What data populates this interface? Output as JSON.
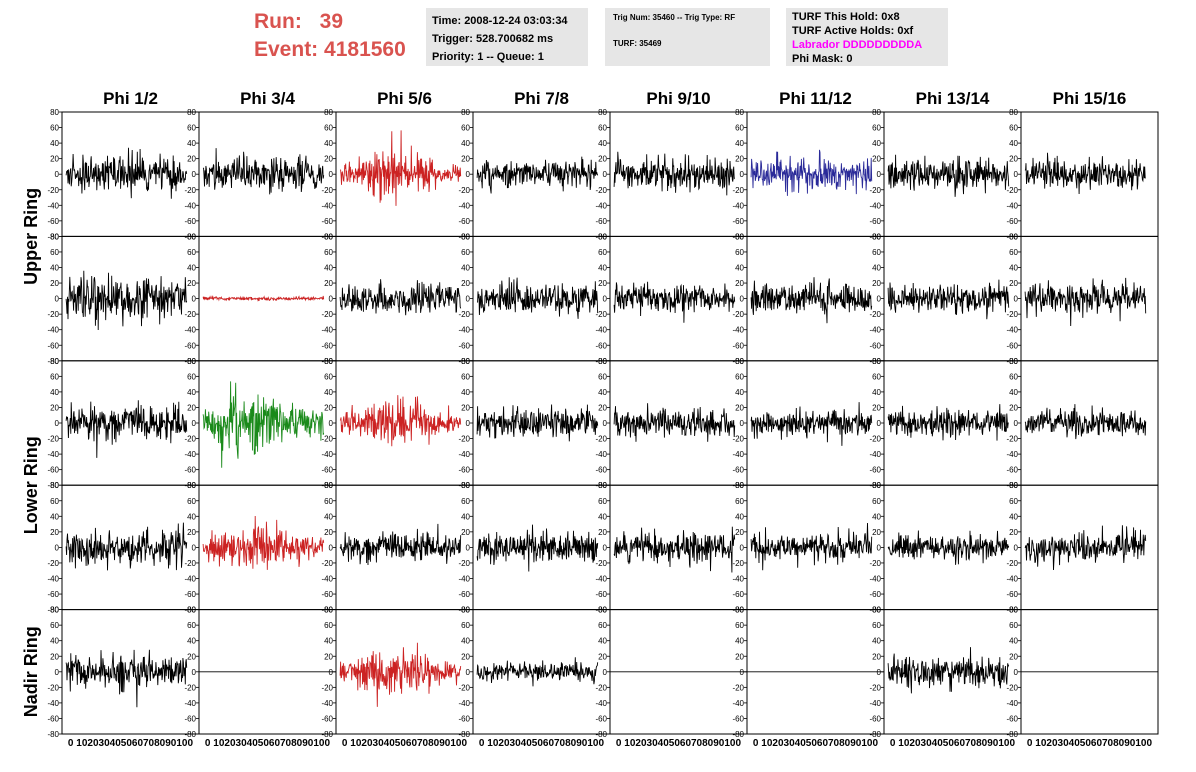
{
  "header": {
    "run_label": "Run:",
    "run_value": "39",
    "event_label": "Event:",
    "event_value": "4181560",
    "time_line": "Time: 2008-12-24 03:03:34",
    "trigger_line": "Trigger: 528.700682 ms",
    "priority_line": "Priority: 1 -- Queue: 1",
    "trig_num_line": "Trig Num: 35460 -- Trig Type: RF",
    "turf_line": "TURF: 35469",
    "turf_hold_line": "TURF This Hold: 0x8",
    "turf_active_line": "TURF Active Holds: 0xf",
    "labrador_line": "Labrador DDDDDDDDDA",
    "phi_mask_line": "Phi Mask: 0"
  },
  "colors": {
    "run_text": "#d9534f",
    "labrador_text": "#ff00ff",
    "info_bg": "#e6e6e6",
    "trace_default": "#000000",
    "trace_red": "#cc2222",
    "trace_green": "#1a8a1a",
    "trace_blue": "#2a2a99"
  },
  "chart_data": {
    "type": "line",
    "description_of_panels": "5 rows x 8 columns of waveform panels, x 0-100, y -80..80",
    "columns": [
      "Phi 1/2",
      "Phi 3/4",
      "Phi 5/6",
      "Phi 7/8",
      "Phi 9/10",
      "Phi 11/12",
      "Phi 13/14",
      "Phi 15/16"
    ],
    "ring_labels": [
      "Upper Ring",
      "Lower Ring",
      "Nadir Ring"
    ],
    "xlim": [
      0,
      100
    ],
    "ylim": [
      -80,
      80
    ],
    "y_ticks": [
      -80,
      -60,
      -40,
      -20,
      0,
      20,
      40,
      60,
      80
    ],
    "x_ticks": [
      0,
      10,
      20,
      30,
      40,
      50,
      60,
      70,
      80,
      90,
      100
    ],
    "x_tick_text": "0 102030405060708090100",
    "panels": [
      [
        {
          "c": "trace_default",
          "a": 20,
          "s": 11
        },
        {
          "c": "trace_default",
          "a": 20,
          "s": 12
        },
        {
          "c": "trace_red",
          "a": 22,
          "s": 13,
          "burst": true
        },
        {
          "c": "trace_default",
          "a": 16,
          "s": 14
        },
        {
          "c": "trace_default",
          "a": 18,
          "s": 15
        },
        {
          "c": "trace_blue",
          "a": 20,
          "s": 16
        },
        {
          "c": "trace_default",
          "a": 18,
          "s": 17
        },
        {
          "c": "trace_default",
          "a": 18,
          "s": 18
        }
      ],
      [
        {
          "c": "trace_default",
          "a": 26,
          "s": 21
        },
        {
          "c": "trace_red",
          "a": 2,
          "s": 22
        },
        {
          "c": "trace_default",
          "a": 18,
          "s": 23
        },
        {
          "c": "trace_default",
          "a": 18,
          "s": 24
        },
        {
          "c": "trace_default",
          "a": 16,
          "s": 25
        },
        {
          "c": "trace_default",
          "a": 18,
          "s": 26
        },
        {
          "c": "trace_default",
          "a": 16,
          "s": 27
        },
        {
          "c": "trace_default",
          "a": 18,
          "s": 28
        }
      ],
      [
        {
          "c": "trace_default",
          "a": 20,
          "s": 31
        },
        {
          "c": "trace_green",
          "a": 30,
          "s": 32,
          "burst": true
        },
        {
          "c": "trace_red",
          "a": 24,
          "s": 33,
          "burst": true
        },
        {
          "c": "trace_default",
          "a": 16,
          "s": 34
        },
        {
          "c": "trace_default",
          "a": 16,
          "s": 35
        },
        {
          "c": "trace_default",
          "a": 16,
          "s": 36
        },
        {
          "c": "trace_default",
          "a": 16,
          "s": 37
        },
        {
          "c": "trace_default",
          "a": 14,
          "s": 38
        }
      ],
      [
        {
          "c": "trace_default",
          "a": 22,
          "s": 41
        },
        {
          "c": "trace_red",
          "a": 24,
          "s": 42,
          "burst": true
        },
        {
          "c": "trace_default",
          "a": 16,
          "s": 43
        },
        {
          "c": "trace_default",
          "a": 18,
          "s": 44
        },
        {
          "c": "trace_default",
          "a": 18,
          "s": 45
        },
        {
          "c": "trace_default",
          "a": 16,
          "s": 46
        },
        {
          "c": "trace_default",
          "a": 14,
          "s": 47
        },
        {
          "c": "trace_default",
          "a": 18,
          "s": 48
        }
      ],
      [
        {
          "c": "trace_default",
          "a": 20,
          "s": 51
        },
        {
          "c": "trace_default",
          "a": 0,
          "s": 52
        },
        {
          "c": "trace_red",
          "a": 22,
          "s": 53,
          "burst": true
        },
        {
          "c": "trace_default",
          "a": 12,
          "s": 54
        },
        {
          "c": "trace_default",
          "a": 0,
          "s": 55
        },
        {
          "c": "trace_default",
          "a": 0,
          "s": 56
        },
        {
          "c": "trace_default",
          "a": 18,
          "s": 57
        },
        {
          "c": "trace_default",
          "a": 0,
          "s": 58
        }
      ]
    ]
  }
}
